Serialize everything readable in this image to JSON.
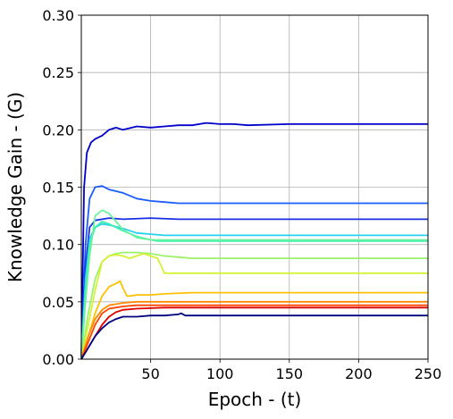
{
  "chart_data": {
    "type": "line",
    "title": "",
    "xlabel": "Epoch - (t)",
    "ylabel": "Knowledge Gain - (G)",
    "xlim": [
      0,
      250
    ],
    "ylim": [
      0,
      0.3
    ],
    "xticks": [
      50,
      100,
      150,
      200,
      250
    ],
    "xtick_labels": [
      "50",
      "100",
      "150",
      "200",
      "250"
    ],
    "yticks": [
      0,
      0.05,
      0.1,
      0.15,
      0.2,
      0.25,
      0.3
    ],
    "ytick_labels": [
      "0.00",
      "0.05",
      "0.10",
      "0.15",
      "0.20",
      "0.25",
      "0.30"
    ],
    "grid": true,
    "legend": "none",
    "series": [
      {
        "color": "#0000cc",
        "x": [
          0,
          2,
          4,
          7,
          10,
          15,
          20,
          25,
          30,
          40,
          50,
          60,
          70,
          80,
          90,
          100,
          110,
          120,
          150,
          200,
          250
        ],
        "y": [
          0.0,
          0.15,
          0.18,
          0.189,
          0.192,
          0.195,
          0.2,
          0.202,
          0.2,
          0.203,
          0.202,
          0.203,
          0.204,
          0.204,
          0.206,
          0.205,
          0.205,
          0.204,
          0.205,
          0.205,
          0.205
        ]
      },
      {
        "color": "#1a5cff",
        "x": [
          0,
          3,
          6,
          10,
          15,
          20,
          30,
          40,
          50,
          60,
          70,
          80,
          100,
          150,
          200,
          250
        ],
        "y": [
          0.0,
          0.1,
          0.14,
          0.15,
          0.151,
          0.148,
          0.145,
          0.14,
          0.138,
          0.137,
          0.136,
          0.136,
          0.136,
          0.136,
          0.136,
          0.136
        ]
      },
      {
        "color": "#1a2ee6",
        "x": [
          0,
          3,
          6,
          10,
          15,
          20,
          30,
          50,
          70,
          100,
          150,
          200,
          250
        ],
        "y": [
          0.0,
          0.08,
          0.115,
          0.121,
          0.122,
          0.123,
          0.122,
          0.123,
          0.122,
          0.122,
          0.122,
          0.122,
          0.122
        ]
      },
      {
        "color": "#26d0f0",
        "x": [
          0,
          3,
          6,
          10,
          15,
          20,
          30,
          40,
          50,
          60,
          100,
          150,
          200,
          250
        ],
        "y": [
          0.0,
          0.07,
          0.105,
          0.115,
          0.118,
          0.117,
          0.114,
          0.11,
          0.109,
          0.108,
          0.108,
          0.108,
          0.108,
          0.108
        ]
      },
      {
        "color": "#3ef0b0",
        "x": [
          0,
          3,
          6,
          10,
          15,
          20,
          25,
          30,
          40,
          50,
          55,
          60,
          100,
          150,
          200,
          250
        ],
        "y": [
          0.0,
          0.06,
          0.1,
          0.115,
          0.12,
          0.118,
          0.115,
          0.112,
          0.107,
          0.104,
          0.103,
          0.103,
          0.103,
          0.103,
          0.103,
          0.103
        ]
      },
      {
        "color": "#6cf29a",
        "x": [
          0,
          3,
          6,
          10,
          15,
          20,
          25,
          30,
          40,
          50,
          60,
          100,
          150,
          200,
          250
        ],
        "y": [
          0.0,
          0.05,
          0.09,
          0.125,
          0.13,
          0.127,
          0.12,
          0.113,
          0.106,
          0.104,
          0.104,
          0.104,
          0.104,
          0.104,
          0.104
        ]
      },
      {
        "color": "#9cf268",
        "x": [
          0,
          5,
          10,
          15,
          20,
          25,
          30,
          40,
          50,
          60,
          70,
          80,
          100,
          150,
          200,
          250
        ],
        "y": [
          0.0,
          0.04,
          0.07,
          0.085,
          0.09,
          0.092,
          0.093,
          0.093,
          0.092,
          0.09,
          0.089,
          0.088,
          0.088,
          0.088,
          0.088,
          0.088
        ]
      },
      {
        "color": "#d6f235",
        "x": [
          0,
          5,
          10,
          15,
          20,
          25,
          30,
          35,
          40,
          45,
          50,
          55,
          60,
          100,
          150,
          200,
          250
        ],
        "y": [
          0.0,
          0.03,
          0.06,
          0.085,
          0.09,
          0.091,
          0.09,
          0.088,
          0.09,
          0.092,
          0.09,
          0.088,
          0.075,
          0.075,
          0.075,
          0.075,
          0.075
        ]
      },
      {
        "color": "#ffc000",
        "x": [
          0,
          5,
          10,
          15,
          20,
          25,
          28,
          30,
          33,
          35,
          40,
          50,
          60,
          80,
          100,
          150,
          200,
          250
        ],
        "y": [
          0.0,
          0.02,
          0.04,
          0.055,
          0.063,
          0.066,
          0.068,
          0.062,
          0.055,
          0.055,
          0.056,
          0.056,
          0.057,
          0.058,
          0.058,
          0.058,
          0.058,
          0.058
        ]
      },
      {
        "color": "#ff8a00",
        "x": [
          0,
          5,
          10,
          15,
          20,
          30,
          40,
          60,
          100,
          150,
          200,
          250
        ],
        "y": [
          0.0,
          0.02,
          0.035,
          0.043,
          0.047,
          0.049,
          0.05,
          0.05,
          0.05,
          0.05,
          0.05,
          0.05
        ]
      },
      {
        "color": "#ff4500",
        "x": [
          0,
          5,
          10,
          15,
          20,
          30,
          40,
          60,
          100,
          150,
          200,
          250
        ],
        "y": [
          0.0,
          0.015,
          0.03,
          0.04,
          0.044,
          0.046,
          0.047,
          0.047,
          0.047,
          0.047,
          0.047,
          0.047
        ]
      },
      {
        "color": "#dd0000",
        "x": [
          0,
          5,
          10,
          15,
          20,
          25,
          30,
          40,
          60,
          80,
          100,
          150,
          200,
          250
        ],
        "y": [
          0.0,
          0.01,
          0.02,
          0.03,
          0.037,
          0.041,
          0.043,
          0.044,
          0.045,
          0.045,
          0.045,
          0.045,
          0.045,
          0.045
        ]
      },
      {
        "color": "#00007f",
        "x": [
          0,
          5,
          10,
          15,
          20,
          25,
          30,
          40,
          50,
          60,
          70,
          72,
          75,
          80,
          100,
          150,
          200,
          250
        ],
        "y": [
          0.0,
          0.01,
          0.02,
          0.027,
          0.032,
          0.035,
          0.037,
          0.037,
          0.038,
          0.038,
          0.039,
          0.04,
          0.038,
          0.038,
          0.038,
          0.038,
          0.038,
          0.038
        ]
      }
    ]
  }
}
